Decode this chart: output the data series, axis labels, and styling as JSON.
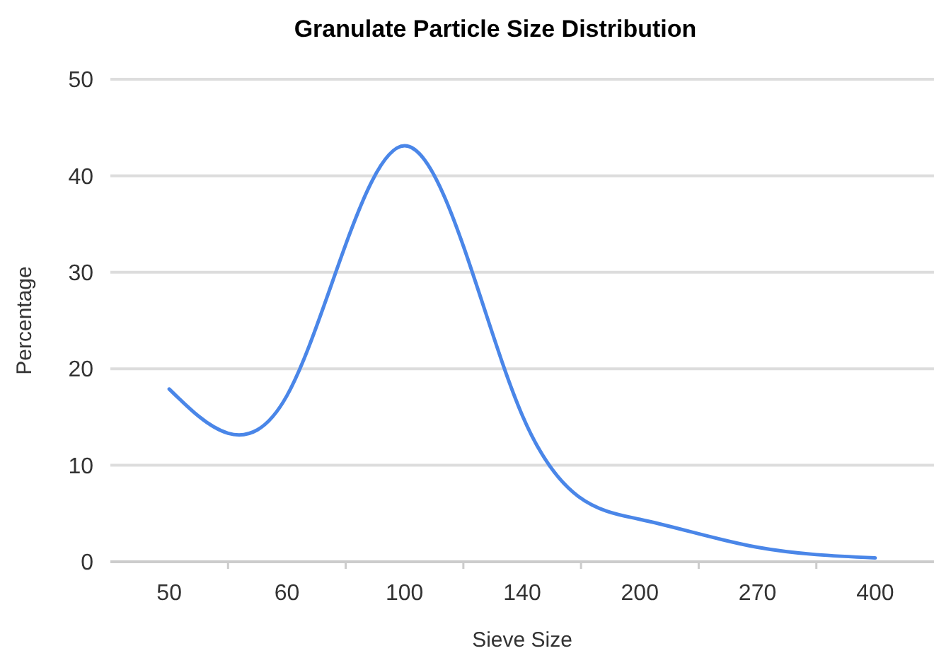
{
  "chart_data": {
    "type": "line",
    "title": "Granulate Particle Size Distribution",
    "xlabel": "Sieve Size",
    "ylabel": "Percentage",
    "categories": [
      "50",
      "60",
      "100",
      "140",
      "200",
      "270",
      "400"
    ],
    "series": [
      {
        "color": "#4a86e8",
        "values": [
          17.9,
          17.2,
          43.1,
          15.2,
          4.4,
          1.5,
          0.4
        ]
      }
    ],
    "ylim": [
      0,
      50
    ],
    "yticks": [
      0,
      10,
      20,
      30,
      40,
      50
    ],
    "grid": "y",
    "marker": "none",
    "line_style": "solid"
  }
}
